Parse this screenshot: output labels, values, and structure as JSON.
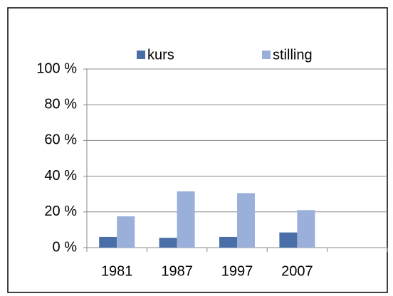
{
  "chart_data": {
    "type": "bar",
    "categories": [
      "1981",
      "1987",
      "1997",
      "2007",
      null
    ],
    "series": [
      {
        "name": "kurs",
        "color": "#4a6fa8",
        "values": [
          6,
          5.5,
          6,
          8.5,
          null
        ]
      },
      {
        "name": "stilling",
        "color": "#9aafd9",
        "values": [
          17.5,
          31.5,
          30.5,
          21,
          null
        ]
      }
    ],
    "ylim": [
      0,
      100
    ],
    "yticks": [
      {
        "value": 0,
        "label": "0 %"
      },
      {
        "value": 20,
        "label": "20 %"
      },
      {
        "value": 40,
        "label": "40 %"
      },
      {
        "value": 60,
        "label": "60 %"
      },
      {
        "value": 80,
        "label": "80 %"
      },
      {
        "value": 100,
        "label": "100 %"
      }
    ],
    "grid": true,
    "legend": "top"
  }
}
